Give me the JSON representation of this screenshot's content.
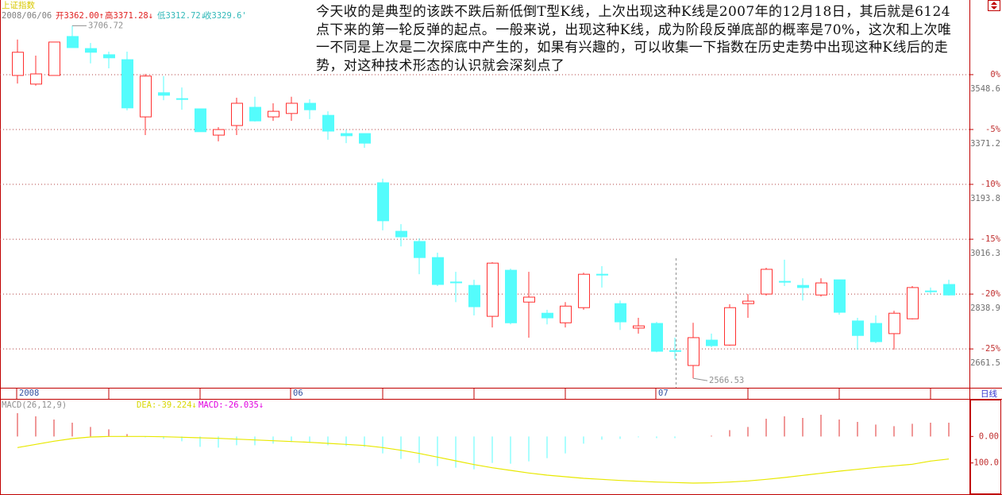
{
  "chart_data": [
    {
      "type": "candlestick",
      "title": "上证指数",
      "info": [
        {
          "text": "2008/06/06",
          "color": "#808080"
        },
        {
          "text": "开3362.00↑",
          "color": "#e02020"
        },
        {
          "text": "高3371.28↓",
          "color": "#e02020"
        },
        {
          "text": "低3312.72↓",
          "color": "#30b8b8"
        },
        {
          "text": "收3329.6'",
          "color": "#30b8b8"
        }
      ],
      "note": "今天收的是典型的该跌不跌后新低倒T型K线，上次出现这种K线是2007年的12月18日，其后就是6124点下来的第一轮反弹的起点。一般来说，出现这种K线，成为阶段反弹底部的概率是70%，这次和上次唯一不同是上次是二次探底中产生的，如果有兴趣的，可以收集一下指数在历史走势中出现这种K线后的走势，对这种技术形态的认识就会深刻点了",
      "period": "日线",
      "categories": [
        "2008",
        null,
        null,
        null,
        null,
        null,
        null,
        null,
        null,
        null,
        null,
        null,
        null,
        null,
        null,
        "06",
        null,
        null,
        null,
        null,
        null,
        null,
        null,
        null,
        null,
        null,
        null,
        null,
        null,
        null,
        null,
        null,
        null,
        null,
        null,
        "07",
        null,
        null,
        null,
        null,
        null,
        null,
        null,
        null,
        null,
        null,
        null,
        null,
        null,
        null,
        null,
        null
      ],
      "open": [
        3546,
        3518,
        3546,
        3672,
        3633,
        3613,
        3597,
        3412,
        3490,
        3471,
        3438,
        3353,
        3384,
        3443,
        3412,
        3423,
        3456,
        3417,
        3358,
        3358,
        3199,
        3042,
        3009,
        2957,
        2878,
        2867,
        2767,
        2916,
        2813,
        2777,
        2746,
        2795,
        2903,
        2808,
        2729,
        2744,
        2656,
        2608,
        2690,
        2674,
        2808,
        2839,
        2880,
        2867,
        2836,
        2885,
        2752,
        2744,
        2711,
        2759,
        2849,
        2870
      ],
      "high": [
        3662,
        3610,
        3654,
        3706.72,
        3651,
        3623,
        3623,
        3551,
        3544,
        3507,
        3438,
        3379,
        3474,
        3477,
        3456,
        3477,
        3469,
        3430,
        3371,
        3358,
        3212,
        3065,
        3019,
        2973,
        2911,
        2885,
        2942,
        2921,
        2911,
        2788,
        2813,
        2908,
        2929,
        2818,
        2762,
        2749,
        2698,
        2746,
        2711,
        2806,
        2839,
        2924,
        2950,
        2890,
        2890,
        2885,
        2762,
        2770,
        2785,
        2865,
        2860,
        2885
      ],
      "low": [
        3520,
        3513,
        3546,
        3636,
        3585,
        3569,
        3433,
        3353,
        3466,
        3435,
        3364,
        3333,
        3353,
        3397,
        3399,
        3399,
        3405,
        3338,
        3327,
        3312,
        3045,
        2993,
        2903,
        2865,
        2813,
        2770,
        2731,
        2741,
        2698,
        2741,
        2731,
        2788,
        2860,
        2723,
        2711,
        2651,
        2628,
        2566.53,
        2667,
        2672,
        2762,
        2834,
        2865,
        2818,
        2831,
        2772,
        2659,
        2680,
        2659,
        2757,
        2839,
        2834
      ],
      "close": [
        3621,
        3551,
        3654,
        3636,
        3621,
        3603,
        3441,
        3544,
        3482,
        3471,
        3364,
        3371,
        3456,
        3399,
        3430,
        3456,
        3435,
        3366,
        3351,
        3327,
        3076,
        3024,
        2957,
        2870,
        2878,
        2798,
        2939,
        2746,
        2829,
        2762,
        2800,
        2903,
        2903,
        2749,
        2736,
        2654,
        2656,
        2698,
        2672,
        2795,
        2816,
        2919,
        2880,
        2860,
        2875,
        2780,
        2705,
        2685,
        2777,
        2860,
        2849,
        2836
      ],
      "up_color": "#ff3030",
      "down_color": "#54fcfc",
      "ylim": [
        2536,
        3790
      ],
      "yticks": [
        3548.6,
        3371.2,
        3193.8,
        3016.3,
        2838.9,
        2661.5
      ],
      "y2lim": [
        -28.54,
        6.8
      ],
      "y2ticks": [
        {
          "value": 0,
          "label": "0%"
        },
        {
          "value": -5,
          "label": "-5%"
        },
        {
          "value": -10,
          "label": "-10%"
        },
        {
          "value": -15,
          "label": "-15%"
        },
        {
          "value": -20,
          "label": "-20%"
        },
        {
          "value": -25,
          "label": "-25%"
        }
      ],
      "grid": true
    },
    {
      "type": "macd",
      "title": "MACD(26,12,9)",
      "readouts": [
        {
          "text": "DEA:-39.224↓",
          "color": "#d8d800"
        },
        {
          "text": "MACD:-26.035↓",
          "color": "#e000e0"
        }
      ],
      "histogram": [
        88,
        76,
        64,
        52,
        36,
        27,
        9,
        -3,
        -9,
        -18,
        -39,
        -42,
        -33,
        -33,
        -27,
        -21,
        -24,
        -33,
        -36,
        -39,
        -64,
        -85,
        -100,
        -112,
        -118,
        -124,
        -100,
        -103,
        -94,
        -82,
        -64,
        -27,
        -12,
        -9,
        -3,
        -6,
        -6,
        0,
        3,
        24,
        36,
        67,
        76,
        70,
        82,
        64,
        55,
        45,
        39,
        48,
        52,
        52
      ],
      "dea": [
        -42,
        -30,
        -18,
        -8,
        -2,
        0,
        0,
        0,
        -1,
        -3,
        -5,
        -7,
        -10,
        -13,
        -16,
        -19,
        -22,
        -26,
        -30,
        -34,
        -42,
        -52,
        -64,
        -78,
        -92,
        -106,
        -118,
        -128,
        -138,
        -146,
        -152,
        -158,
        -162,
        -166,
        -169,
        -172,
        -174,
        -176,
        -175,
        -172,
        -168,
        -162,
        -155,
        -147,
        -139,
        -131,
        -124,
        -117,
        -111,
        -105,
        -93,
        -85
      ],
      "up_color": "#e03030",
      "down_color": "#54fcfc",
      "dea_color": "#e8e800",
      "ylim": [
        -218,
        139
      ],
      "yticks": [
        {
          "value": 0,
          "label": "0.00"
        },
        {
          "value": -100,
          "label": "-100.0"
        }
      ],
      "grid": false
    }
  ]
}
